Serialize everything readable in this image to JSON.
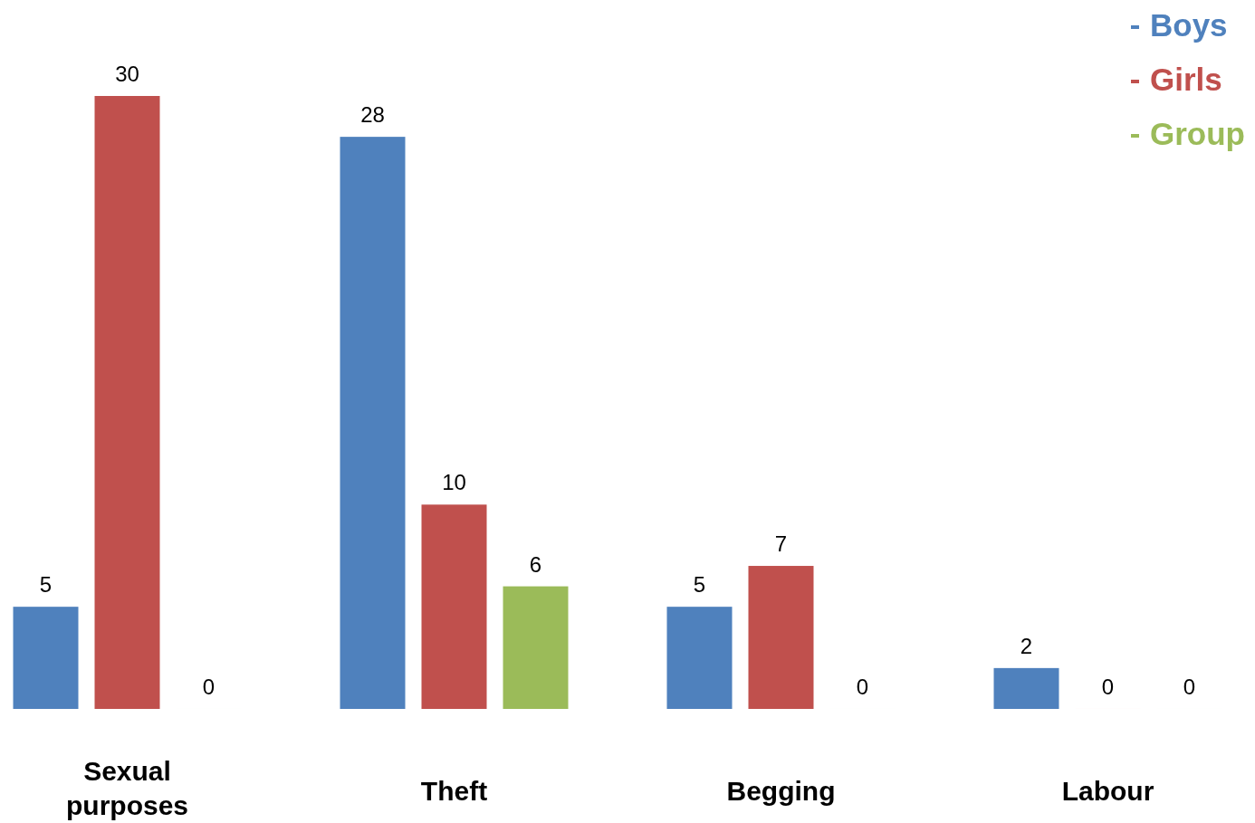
{
  "chart_data": {
    "type": "bar",
    "categories": [
      "Sexual purposes",
      "Theft",
      "Begging",
      "Labour"
    ],
    "series": [
      {
        "name": "Boys",
        "color": "#4f81bd",
        "values": [
          5,
          28,
          5,
          2
        ]
      },
      {
        "name": "Girls",
        "color": "#c0504d",
        "values": [
          30,
          10,
          7,
          0
        ]
      },
      {
        "name": "Group",
        "color": "#9bbb59",
        "values": [
          0,
          6,
          0,
          0
        ]
      }
    ],
    "data_labels": true,
    "legend": "top right"
  }
}
